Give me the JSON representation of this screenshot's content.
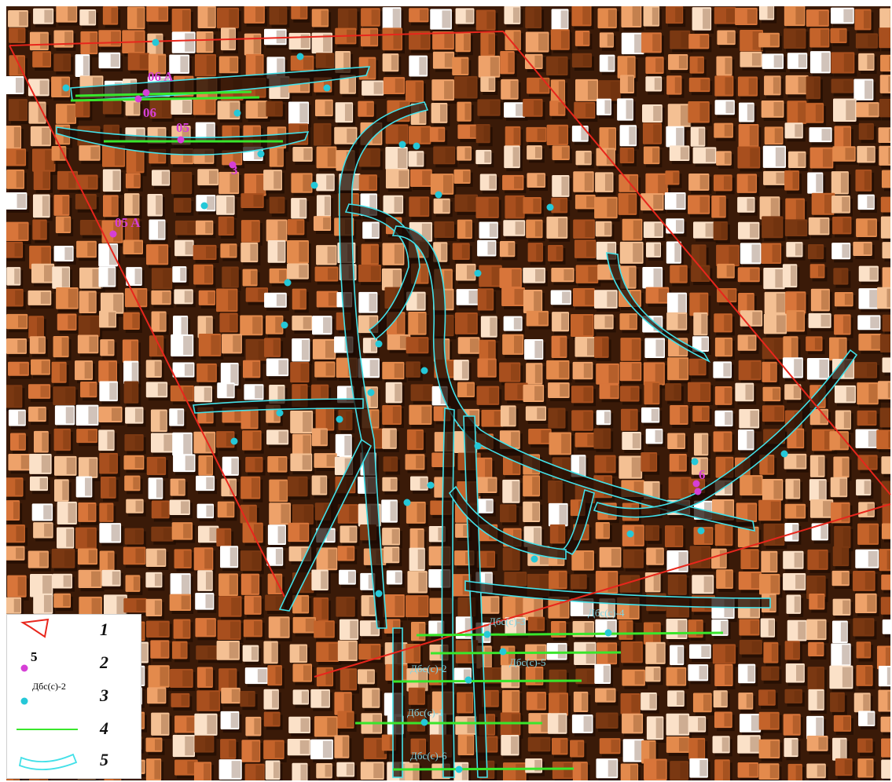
{
  "map": {
    "well_labels": [
      {
        "text": "06 A",
        "color": "#d63fd6"
      },
      {
        "text": "06",
        "color": "#d63fd6"
      },
      {
        "text": "05",
        "color": "#d63fd6"
      },
      {
        "text": "3",
        "color": "#d63fd6"
      },
      {
        "text": "05 A",
        "color": "#d63fd6"
      },
      {
        "text": "6",
        "color": "#d63fd6"
      }
    ],
    "profile_labels": [
      {
        "text": "Дбс(с)-4",
        "color": "#7fd6e6"
      },
      {
        "text": "Дбс(с)-3",
        "color": "#7fd6e6"
      },
      {
        "text": "Дбс(с)-5",
        "color": "#7fd6e6"
      },
      {
        "text": "Дбс(с)-2",
        "color": "#7fd6e6"
      },
      {
        "text": "Дбс(с)-1",
        "color": "#7fd6e6"
      },
      {
        "text": "Дбс(с)-6",
        "color": "#7fd6e6"
      }
    ],
    "colors": {
      "boundary": "#e8261c",
      "well": "#d63fd6",
      "profile_point": "#25c8d8",
      "profile_line": "#39e62c",
      "channel": "#43e0e8",
      "relief_dark": "#3a1a08",
      "relief_mid": "#d8753a",
      "relief_light": "#ffffff"
    }
  },
  "legend": {
    "items": [
      {
        "num": "1",
        "symbol": "boundary-polygon"
      },
      {
        "num": "2",
        "symbol": "well-point",
        "sample": "5"
      },
      {
        "num": "3",
        "symbol": "profile-point",
        "sample": "Дбс(с)-2"
      },
      {
        "num": "4",
        "symbol": "profile-line"
      },
      {
        "num": "5",
        "symbol": "channel-outline"
      }
    ]
  }
}
